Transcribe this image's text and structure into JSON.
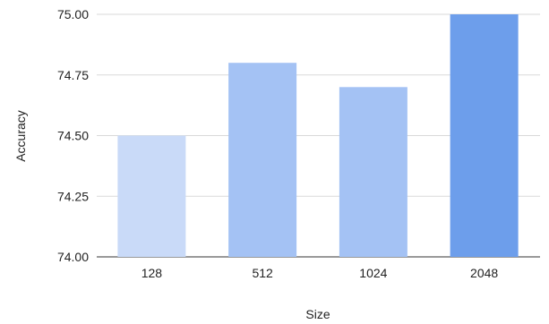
{
  "chart_data": {
    "type": "bar",
    "title": "",
    "xlabel": "Size",
    "ylabel": "Accuracy",
    "categories": [
      "128",
      "512",
      "1024",
      "2048"
    ],
    "values": [
      74.5,
      74.8,
      74.7,
      75.0
    ],
    "ylim": [
      74.0,
      75.0
    ],
    "yticks": [
      "74.00",
      "74.25",
      "74.50",
      "74.75",
      "75.00"
    ],
    "ytick_values": [
      74.0,
      74.25,
      74.5,
      74.75,
      75.0
    ],
    "bar_colors": [
      "#c9daf8",
      "#a4c2f4",
      "#a4c2f4",
      "#6d9eeb"
    ],
    "grid": true,
    "legend": "none"
  }
}
